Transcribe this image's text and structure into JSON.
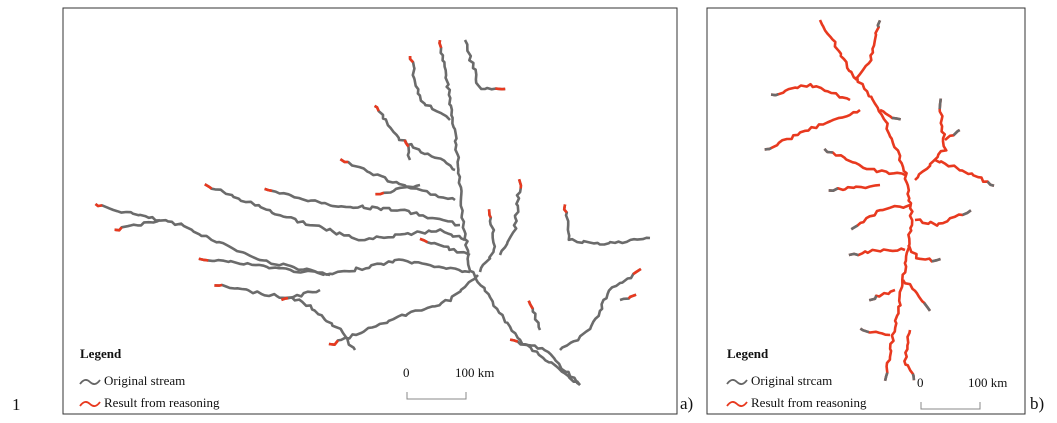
{
  "figure_number": "1",
  "panels": [
    {
      "label": "a)",
      "legend": {
        "title": "Legend",
        "items": [
          "Original stream",
          "Result from reasoning"
        ]
      },
      "scale_bar": {
        "start": "0",
        "end": "100 km"
      }
    },
    {
      "label": "b)",
      "legend": {
        "title": "Legend",
        "items": [
          "Original strcam",
          "Result from reasoning"
        ]
      },
      "scale_bar": {
        "start": "0",
        "end": "100 km"
      }
    }
  ]
}
